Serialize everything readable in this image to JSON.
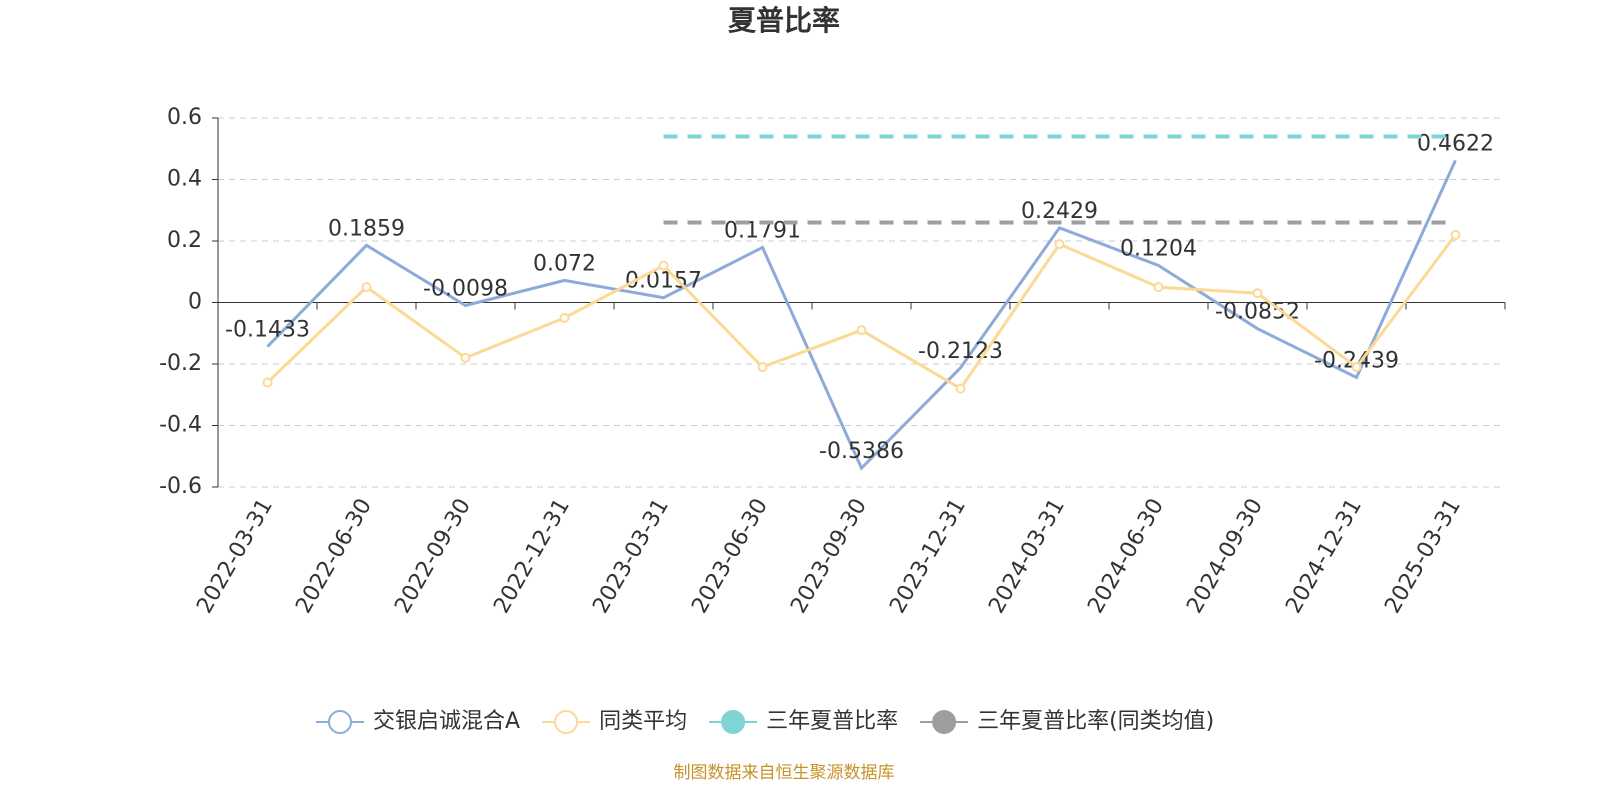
{
  "chart_data": {
    "type": "line",
    "title": "夏普比率",
    "footer": "制图数据来自恒生聚源数据库",
    "categories": [
      "2022-03-31",
      "2022-06-30",
      "2022-09-30",
      "2022-12-31",
      "2023-03-31",
      "2023-06-30",
      "2023-09-30",
      "2023-12-31",
      "2024-03-31",
      "2024-06-30",
      "2024-09-30",
      "2024-12-31",
      "2025-03-31"
    ],
    "series": [
      {
        "name": "交银启诚混合A",
        "color": "#8eaad9",
        "values": [
          -0.1433,
          0.1859,
          -0.0098,
          0.072,
          0.0157,
          0.1791,
          -0.5386,
          -0.2123,
          0.2429,
          0.1204,
          -0.0852,
          -0.2439,
          0.4622
        ],
        "labels": true,
        "markers": false,
        "dashed": false
      },
      {
        "name": "同类平均",
        "color": "#fcd994",
        "values": [
          -0.26,
          0.05,
          -0.18,
          -0.05,
          0.12,
          -0.21,
          -0.09,
          -0.28,
          0.19,
          0.05,
          0.03,
          -0.21,
          0.22
        ],
        "labels": false,
        "markers": true,
        "dashed": false
      },
      {
        "name": "三年夏普比率",
        "color": "#7fd4d4",
        "values": [
          null,
          null,
          null,
          null,
          0.54,
          0.54,
          0.54,
          0.54,
          0.54,
          0.54,
          0.54,
          0.54,
          0.54
        ],
        "labels": false,
        "markers": false,
        "dashed": true
      },
      {
        "name": "三年夏普比率(同类均值)",
        "color": "#9e9e9e",
        "values": [
          null,
          null,
          null,
          null,
          0.26,
          0.26,
          0.26,
          0.26,
          0.26,
          0.26,
          0.26,
          0.26,
          0.26
        ],
        "labels": false,
        "markers": false,
        "dashed": true
      }
    ],
    "ylim": [
      -0.6,
      0.6
    ],
    "yticks": [
      -0.6,
      -0.4,
      -0.2,
      0,
      0.2,
      0.4,
      0.6
    ],
    "grid": true
  }
}
